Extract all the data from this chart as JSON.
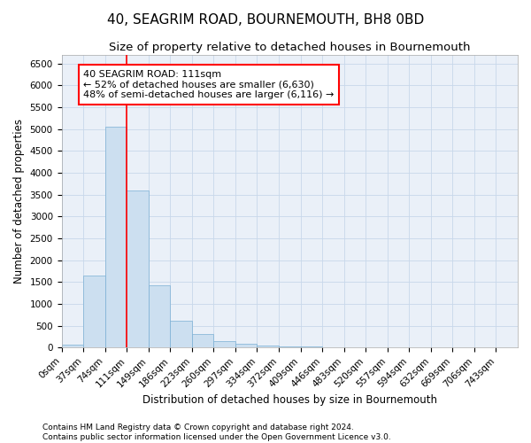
{
  "title": "40, SEAGRIM ROAD, BOURNEMOUTH, BH8 0BD",
  "subtitle": "Size of property relative to detached houses in Bournemouth",
  "xlabel": "Distribution of detached houses by size in Bournemouth",
  "ylabel": "Number of detached properties",
  "bar_color": "#ccdff0",
  "bar_edge_color": "#7aafd4",
  "grid_color": "#c8d8ea",
  "background_color": "#eaf0f8",
  "vline_color": "red",
  "bin_width": 37,
  "bar_values": [
    75,
    1650,
    5050,
    3600,
    1430,
    610,
    310,
    155,
    80,
    50,
    30,
    20,
    5,
    0,
    0,
    0,
    0,
    0,
    0,
    0,
    0
  ],
  "x_tick_labels": [
    "0sqm",
    "37sqm",
    "74sqm",
    "111sqm",
    "149sqm",
    "186sqm",
    "223sqm",
    "260sqm",
    "297sqm",
    "334sqm",
    "372sqm",
    "409sqm",
    "446sqm",
    "483sqm",
    "520sqm",
    "557sqm",
    "594sqm",
    "632sqm",
    "669sqm",
    "706sqm",
    "743sqm"
  ],
  "ylim": [
    0,
    6700
  ],
  "yticks": [
    0,
    500,
    1000,
    1500,
    2000,
    2500,
    3000,
    3500,
    4000,
    4500,
    5000,
    5500,
    6000,
    6500
  ],
  "annotation_text": "40 SEAGRIM ROAD: 111sqm\n← 52% of detached houses are smaller (6,630)\n48% of semi-detached houses are larger (6,116) →",
  "annotation_box_color": "white",
  "annotation_border_color": "red",
  "footer_line1": "Contains HM Land Registry data © Crown copyright and database right 2024.",
  "footer_line2": "Contains public sector information licensed under the Open Government Licence v3.0.",
  "title_fontsize": 11,
  "subtitle_fontsize": 9.5,
  "axis_label_fontsize": 8.5,
  "tick_fontsize": 7.5,
  "annotation_fontsize": 8,
  "footer_fontsize": 6.5
}
